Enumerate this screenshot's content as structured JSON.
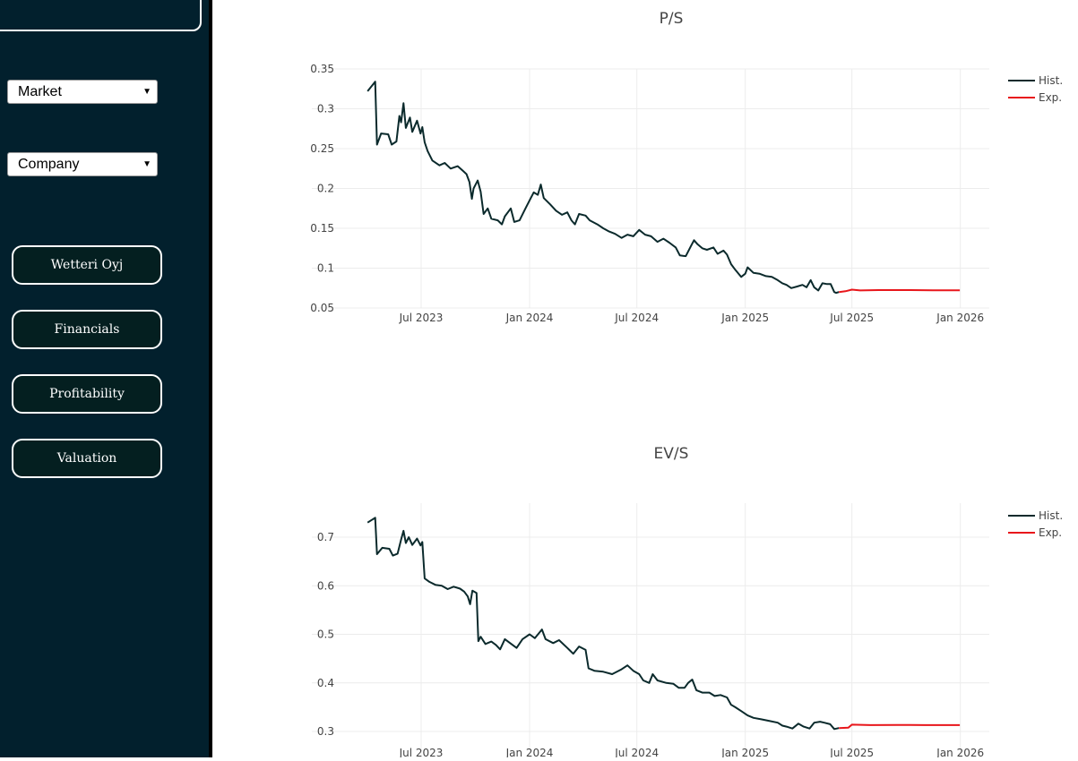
{
  "sidebar": {
    "market_select": "Market",
    "company_select": "Company",
    "buttons": [
      "Wetteri Oyj",
      "Financials",
      "Profitability",
      "Valuation"
    ]
  },
  "colors": {
    "sidebar": "#02202d",
    "hist": "#0b2a2c",
    "exp": "#e8161b"
  },
  "chart_data": [
    {
      "type": "line",
      "title": "P/S",
      "xlabel": "",
      "ylabel": "",
      "x_ticks": [
        "Jul 2023",
        "Jan 2024",
        "Jul 2024",
        "Jan 2025",
        "Jul 2025",
        "Jan 2026"
      ],
      "x_tick_dates": [
        "2023-07-01",
        "2024-01-01",
        "2024-07-01",
        "2025-01-01",
        "2025-07-01",
        "2026-01-01"
      ],
      "y_ticks": [
        0.05,
        0.1,
        0.15,
        0.2,
        0.25,
        0.3,
        0.35
      ],
      "ylim": [
        0.05,
        0.35
      ],
      "legend": "top-right",
      "series": [
        {
          "name": "Hist.",
          "color": "#0b2a2c",
          "points": [
            [
              "2023-04-01",
              0.322
            ],
            [
              "2023-04-14",
              0.334
            ],
            [
              "2023-04-17",
              0.255
            ],
            [
              "2023-04-24",
              0.269
            ],
            [
              "2023-05-06",
              0.268
            ],
            [
              "2023-05-12",
              0.255
            ],
            [
              "2023-05-20",
              0.259
            ],
            [
              "2023-05-25",
              0.291
            ],
            [
              "2023-05-28",
              0.283
            ],
            [
              "2023-06-01",
              0.307
            ],
            [
              "2023-06-05",
              0.276
            ],
            [
              "2023-06-12",
              0.289
            ],
            [
              "2023-06-16",
              0.271
            ],
            [
              "2023-06-24",
              0.285
            ],
            [
              "2023-06-30",
              0.269
            ],
            [
              "2023-07-03",
              0.277
            ],
            [
              "2023-07-07",
              0.258
            ],
            [
              "2023-07-12",
              0.247
            ],
            [
              "2023-07-20",
              0.235
            ],
            [
              "2023-08-01",
              0.229
            ],
            [
              "2023-08-10",
              0.232
            ],
            [
              "2023-08-20",
              0.225
            ],
            [
              "2023-09-01",
              0.228
            ],
            [
              "2023-09-10",
              0.222
            ],
            [
              "2023-09-16",
              0.218
            ],
            [
              "2023-09-21",
              0.208
            ],
            [
              "2023-09-25",
              0.187
            ],
            [
              "2023-09-28",
              0.2
            ],
            [
              "2023-10-05",
              0.21
            ],
            [
              "2023-10-10",
              0.196
            ],
            [
              "2023-10-15",
              0.168
            ],
            [
              "2023-10-22",
              0.175
            ],
            [
              "2023-10-28",
              0.162
            ],
            [
              "2023-11-08",
              0.16
            ],
            [
              "2023-11-15",
              0.155
            ],
            [
              "2023-11-20",
              0.165
            ],
            [
              "2023-11-30",
              0.175
            ],
            [
              "2023-12-06",
              0.158
            ],
            [
              "2023-12-15",
              0.16
            ],
            [
              "2023-12-25",
              0.175
            ],
            [
              "2024-01-01",
              0.185
            ],
            [
              "2024-01-08",
              0.195
            ],
            [
              "2024-01-15",
              0.192
            ],
            [
              "2024-01-20",
              0.205
            ],
            [
              "2024-01-25",
              0.188
            ],
            [
              "2024-02-05",
              0.18
            ],
            [
              "2024-02-15",
              0.172
            ],
            [
              "2024-02-25",
              0.167
            ],
            [
              "2024-03-05",
              0.17
            ],
            [
              "2024-03-12",
              0.16
            ],
            [
              "2024-03-18",
              0.155
            ],
            [
              "2024-03-25",
              0.168
            ],
            [
              "2024-04-05",
              0.166
            ],
            [
              "2024-04-12",
              0.16
            ],
            [
              "2024-04-25",
              0.155
            ],
            [
              "2024-05-05",
              0.15
            ],
            [
              "2024-05-15",
              0.146
            ],
            [
              "2024-05-25",
              0.143
            ],
            [
              "2024-06-05",
              0.138
            ],
            [
              "2024-06-15",
              0.142
            ],
            [
              "2024-06-25",
              0.14
            ],
            [
              "2024-07-05",
              0.148
            ],
            [
              "2024-07-15",
              0.142
            ],
            [
              "2024-07-25",
              0.14
            ],
            [
              "2024-08-05",
              0.133
            ],
            [
              "2024-08-15",
              0.137
            ],
            [
              "2024-08-25",
              0.132
            ],
            [
              "2024-09-05",
              0.126
            ],
            [
              "2024-09-12",
              0.116
            ],
            [
              "2024-09-22",
              0.115
            ],
            [
              "2024-10-01",
              0.128
            ],
            [
              "2024-10-06",
              0.135
            ],
            [
              "2024-10-12",
              0.13
            ],
            [
              "2024-10-20",
              0.125
            ],
            [
              "2024-10-28",
              0.123
            ],
            [
              "2024-11-08",
              0.126
            ],
            [
              "2024-11-15",
              0.118
            ],
            [
              "2024-11-25",
              0.122
            ],
            [
              "2024-12-01",
              0.117
            ],
            [
              "2024-12-08",
              0.105
            ],
            [
              "2024-12-15",
              0.098
            ],
            [
              "2024-12-25",
              0.089
            ],
            [
              "2025-01-01",
              0.093
            ],
            [
              "2025-01-05",
              0.101
            ],
            [
              "2025-01-15",
              0.094
            ],
            [
              "2025-01-25",
              0.093
            ],
            [
              "2025-02-05",
              0.09
            ],
            [
              "2025-02-15",
              0.089
            ],
            [
              "2025-02-25",
              0.085
            ],
            [
              "2025-03-05",
              0.081
            ],
            [
              "2025-03-12",
              0.079
            ],
            [
              "2025-03-20",
              0.075
            ],
            [
              "2025-03-30",
              0.077
            ],
            [
              "2025-04-08",
              0.079
            ],
            [
              "2025-04-15",
              0.076
            ],
            [
              "2025-04-22",
              0.085
            ],
            [
              "2025-04-28",
              0.076
            ],
            [
              "2025-05-05",
              0.072
            ],
            [
              "2025-05-12",
              0.081
            ],
            [
              "2025-05-20",
              0.08
            ],
            [
              "2025-05-26",
              0.08
            ],
            [
              "2025-06-01",
              0.07
            ],
            [
              "2025-06-04",
              0.069
            ],
            [
              "2025-06-09",
              0.07
            ]
          ]
        },
        {
          "name": "Exp.",
          "color": "#e8161b",
          "points": [
            [
              "2025-06-09",
              0.07
            ],
            [
              "2025-06-20",
              0.071
            ],
            [
              "2025-07-01",
              0.073
            ],
            [
              "2025-07-15",
              0.072
            ],
            [
              "2025-08-15",
              0.0725
            ],
            [
              "2025-10-01",
              0.0725
            ],
            [
              "2025-11-15",
              0.0723
            ],
            [
              "2025-12-31",
              0.0722
            ]
          ]
        }
      ]
    },
    {
      "type": "line",
      "title": "EV/S",
      "xlabel": "",
      "ylabel": "",
      "x_ticks": [
        "Jul 2023",
        "Jan 2024",
        "Jul 2024",
        "Jan 2025",
        "Jul 2025",
        "Jan 2026"
      ],
      "x_tick_dates": [
        "2023-07-01",
        "2024-01-01",
        "2024-07-01",
        "2025-01-01",
        "2025-07-01",
        "2026-01-01"
      ],
      "y_ticks": [
        0.3,
        0.4,
        0.5,
        0.6,
        0.7
      ],
      "ylim": [
        0.3,
        0.77
      ],
      "legend": "top-right",
      "series": [
        {
          "name": "Hist.",
          "color": "#0b2a2c",
          "points": [
            [
              "2023-04-01",
              0.73
            ],
            [
              "2023-04-14",
              0.74
            ],
            [
              "2023-04-17",
              0.665
            ],
            [
              "2023-04-26",
              0.678
            ],
            [
              "2023-05-08",
              0.676
            ],
            [
              "2023-05-14",
              0.662
            ],
            [
              "2023-05-22",
              0.666
            ],
            [
              "2023-05-28",
              0.695
            ],
            [
              "2023-06-01",
              0.713
            ],
            [
              "2023-06-05",
              0.688
            ],
            [
              "2023-06-10",
              0.7
            ],
            [
              "2023-06-16",
              0.684
            ],
            [
              "2023-06-24",
              0.697
            ],
            [
              "2023-06-30",
              0.683
            ],
            [
              "2023-07-03",
              0.69
            ],
            [
              "2023-07-07",
              0.615
            ],
            [
              "2023-07-15",
              0.608
            ],
            [
              "2023-07-25",
              0.602
            ],
            [
              "2023-08-05",
              0.6
            ],
            [
              "2023-08-15",
              0.593
            ],
            [
              "2023-08-25",
              0.598
            ],
            [
              "2023-09-05",
              0.594
            ],
            [
              "2023-09-12",
              0.588
            ],
            [
              "2023-09-18",
              0.578
            ],
            [
              "2023-09-22",
              0.562
            ],
            [
              "2023-09-26",
              0.59
            ],
            [
              "2023-10-03",
              0.585
            ],
            [
              "2023-10-06",
              0.486
            ],
            [
              "2023-10-10",
              0.495
            ],
            [
              "2023-10-18",
              0.48
            ],
            [
              "2023-10-28",
              0.485
            ],
            [
              "2023-11-05",
              0.478
            ],
            [
              "2023-11-12",
              0.469
            ],
            [
              "2023-11-20",
              0.49
            ],
            [
              "2023-12-01",
              0.48
            ],
            [
              "2023-12-10",
              0.472
            ],
            [
              "2023-12-20",
              0.49
            ],
            [
              "2024-01-01",
              0.5
            ],
            [
              "2024-01-10",
              0.492
            ],
            [
              "2024-01-22",
              0.51
            ],
            [
              "2024-01-28",
              0.49
            ],
            [
              "2024-02-10",
              0.482
            ],
            [
              "2024-02-20",
              0.488
            ],
            [
              "2024-03-05",
              0.472
            ],
            [
              "2024-03-15",
              0.46
            ],
            [
              "2024-03-25",
              0.475
            ],
            [
              "2024-04-05",
              0.468
            ],
            [
              "2024-04-10",
              0.43
            ],
            [
              "2024-04-20",
              0.425
            ],
            [
              "2024-05-05",
              0.423
            ],
            [
              "2024-05-20",
              0.418
            ],
            [
              "2024-06-05",
              0.428
            ],
            [
              "2024-06-15",
              0.436
            ],
            [
              "2024-06-25",
              0.425
            ],
            [
              "2024-07-05",
              0.418
            ],
            [
              "2024-07-12",
              0.405
            ],
            [
              "2024-07-22",
              0.4
            ],
            [
              "2024-07-28",
              0.418
            ],
            [
              "2024-08-05",
              0.405
            ],
            [
              "2024-08-20",
              0.4
            ],
            [
              "2024-09-01",
              0.398
            ],
            [
              "2024-09-10",
              0.39
            ],
            [
              "2024-09-20",
              0.39
            ],
            [
              "2024-09-26",
              0.4
            ],
            [
              "2024-10-03",
              0.407
            ],
            [
              "2024-10-10",
              0.385
            ],
            [
              "2024-10-20",
              0.38
            ],
            [
              "2024-11-01",
              0.38
            ],
            [
              "2024-11-10",
              0.373
            ],
            [
              "2024-11-20",
              0.375
            ],
            [
              "2024-12-01",
              0.37
            ],
            [
              "2024-12-08",
              0.355
            ],
            [
              "2024-12-15",
              0.35
            ],
            [
              "2024-12-25",
              0.342
            ],
            [
              "2025-01-05",
              0.333
            ],
            [
              "2025-01-15",
              0.328
            ],
            [
              "2025-01-28",
              0.325
            ],
            [
              "2025-02-10",
              0.322
            ],
            [
              "2025-02-25",
              0.318
            ],
            [
              "2025-03-05",
              0.312
            ],
            [
              "2025-03-12",
              0.31
            ],
            [
              "2025-03-22",
              0.306
            ],
            [
              "2025-04-01",
              0.316
            ],
            [
              "2025-04-10",
              0.31
            ],
            [
              "2025-04-20",
              0.306
            ],
            [
              "2025-04-28",
              0.318
            ],
            [
              "2025-05-08",
              0.32
            ],
            [
              "2025-05-15",
              0.318
            ],
            [
              "2025-05-25",
              0.315
            ],
            [
              "2025-06-01",
              0.305
            ],
            [
              "2025-06-09",
              0.307
            ]
          ]
        },
        {
          "name": "Exp.",
          "color": "#e8161b",
          "points": [
            [
              "2025-06-09",
              0.307
            ],
            [
              "2025-06-25",
              0.308
            ],
            [
              "2025-07-01",
              0.314
            ],
            [
              "2025-08-01",
              0.313
            ],
            [
              "2025-09-15",
              0.3135
            ],
            [
              "2025-11-01",
              0.313
            ],
            [
              "2025-12-31",
              0.313
            ]
          ]
        }
      ]
    }
  ]
}
